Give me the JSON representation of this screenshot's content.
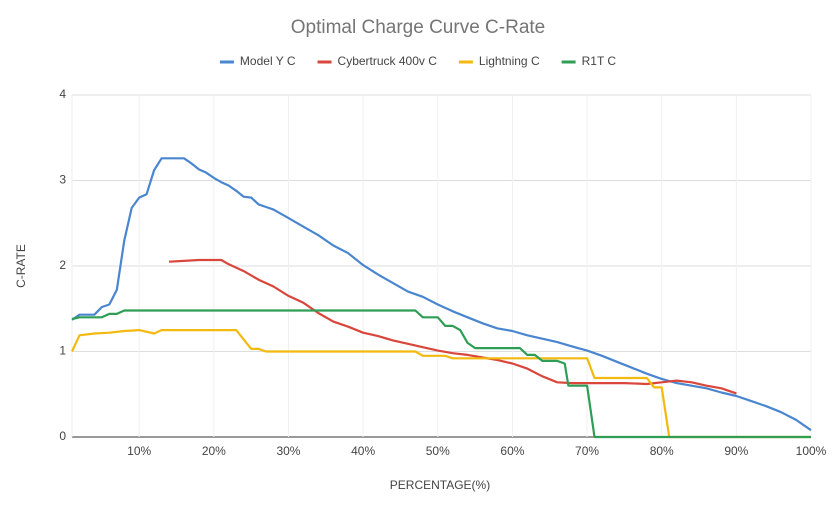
{
  "chart_data": {
    "type": "line",
    "title": "Optimal Charge Curve C-Rate",
    "x_label": "PERCENTAGE(%)",
    "y_label": "C-RATE",
    "xlim": [
      1,
      100
    ],
    "ylim": [
      0,
      4
    ],
    "xticks": [
      {
        "value": 10,
        "label": "10%"
      },
      {
        "value": 20,
        "label": "20%"
      },
      {
        "value": 30,
        "label": "30%"
      },
      {
        "value": 40,
        "label": "40%"
      },
      {
        "value": 50,
        "label": "50%"
      },
      {
        "value": 60,
        "label": "60%"
      },
      {
        "value": 70,
        "label": "70%"
      },
      {
        "value": 80,
        "label": "80%"
      },
      {
        "value": 90,
        "label": "90%"
      },
      {
        "value": 100,
        "label": "100%"
      }
    ],
    "yticks": [
      0,
      1,
      2,
      3,
      4
    ],
    "grid": true,
    "legend": "top",
    "series": [
      {
        "name": "Model Y C",
        "color": "#4a86cf",
        "x": [
          1,
          2,
          4,
          5,
          6,
          7,
          8,
          9,
          10,
          11,
          12,
          13,
          16,
          17,
          18,
          19,
          20,
          21,
          22,
          23,
          24,
          25,
          26,
          27,
          28,
          30,
          32,
          34,
          36,
          38,
          40,
          42,
          44,
          46,
          48,
          50,
          52,
          54,
          56,
          58,
          60,
          62,
          64,
          66,
          68,
          70,
          72,
          74,
          76,
          78,
          80,
          82,
          84,
          86,
          88,
          90,
          92,
          94,
          96,
          98,
          100
        ],
        "values": [
          1.37,
          1.43,
          1.43,
          1.52,
          1.55,
          1.72,
          2.3,
          2.68,
          2.8,
          2.84,
          3.12,
          3.26,
          3.26,
          3.2,
          3.13,
          3.09,
          3.03,
          2.98,
          2.94,
          2.88,
          2.81,
          2.8,
          2.72,
          2.69,
          2.66,
          2.56,
          2.46,
          2.36,
          2.24,
          2.15,
          2.01,
          1.9,
          1.8,
          1.7,
          1.64,
          1.55,
          1.47,
          1.4,
          1.33,
          1.27,
          1.24,
          1.19,
          1.15,
          1.11,
          1.06,
          1.01,
          0.95,
          0.88,
          0.81,
          0.74,
          0.68,
          0.63,
          0.6,
          0.57,
          0.52,
          0.48,
          0.42,
          0.36,
          0.29,
          0.2,
          0.08
        ]
      },
      {
        "name": "Cybertruck 400v C",
        "color": "#d9463b",
        "x": [
          14,
          16,
          18,
          21,
          22,
          24,
          26,
          28,
          30,
          32,
          34,
          36,
          38,
          40,
          42,
          44,
          46,
          48,
          50,
          52,
          54,
          56,
          58,
          60,
          62,
          64,
          66,
          68,
          70,
          75,
          78,
          80,
          82,
          84,
          86,
          88,
          90
        ],
        "values": [
          2.05,
          2.06,
          2.07,
          2.07,
          2.02,
          1.94,
          1.84,
          1.76,
          1.65,
          1.57,
          1.45,
          1.35,
          1.29,
          1.22,
          1.18,
          1.13,
          1.09,
          1.05,
          1.01,
          0.98,
          0.96,
          0.93,
          0.9,
          0.86,
          0.8,
          0.71,
          0.64,
          0.63,
          0.63,
          0.63,
          0.62,
          0.64,
          0.66,
          0.64,
          0.6,
          0.57,
          0.51
        ]
      },
      {
        "name": "Lightning C",
        "color": "#f4b90f",
        "x": [
          1,
          2,
          4,
          6,
          8,
          10,
          12,
          13,
          23,
          25,
          26,
          27,
          47,
          48,
          51,
          52,
          70,
          71,
          78,
          79,
          80,
          81,
          100
        ],
        "values": [
          1.0,
          1.19,
          1.21,
          1.22,
          1.24,
          1.25,
          1.21,
          1.25,
          1.25,
          1.03,
          1.03,
          1.0,
          1.0,
          0.95,
          0.95,
          0.92,
          0.92,
          0.69,
          0.69,
          0.58,
          0.58,
          0,
          0
        ]
      },
      {
        "name": "R1T C",
        "color": "#2e9e55",
        "x": [
          1,
          2,
          5,
          6,
          7,
          8,
          47,
          48,
          50,
          51,
          52,
          53,
          54,
          55,
          61,
          62,
          63,
          64,
          66,
          67,
          67.5,
          70,
          71,
          100
        ],
        "values": [
          1.38,
          1.4,
          1.4,
          1.44,
          1.44,
          1.48,
          1.48,
          1.4,
          1.4,
          1.3,
          1.3,
          1.25,
          1.1,
          1.04,
          1.04,
          0.96,
          0.96,
          0.89,
          0.89,
          0.86,
          0.6,
          0.6,
          0,
          0
        ]
      }
    ]
  }
}
